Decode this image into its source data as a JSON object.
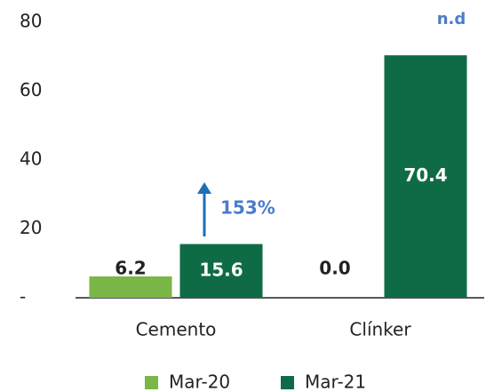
{
  "chart_data": {
    "type": "bar",
    "categories": [
      "Cemento",
      "Clínker"
    ],
    "series": [
      {
        "name": "Mar-20",
        "color": "#7ab648",
        "values": [
          6.2,
          0
        ],
        "value_labels": [
          "6.2",
          "0.0"
        ]
      },
      {
        "name": "Mar-21",
        "color": "#0e6b46",
        "values": [
          15.6,
          70.4
        ]
      }
    ],
    "ylim": [
      0,
      80
    ],
    "yticks": [
      {
        "value": 0,
        "label": "-"
      },
      20,
      40,
      60,
      80
    ],
    "annotations": [
      "153%",
      "n.d"
    ]
  }
}
